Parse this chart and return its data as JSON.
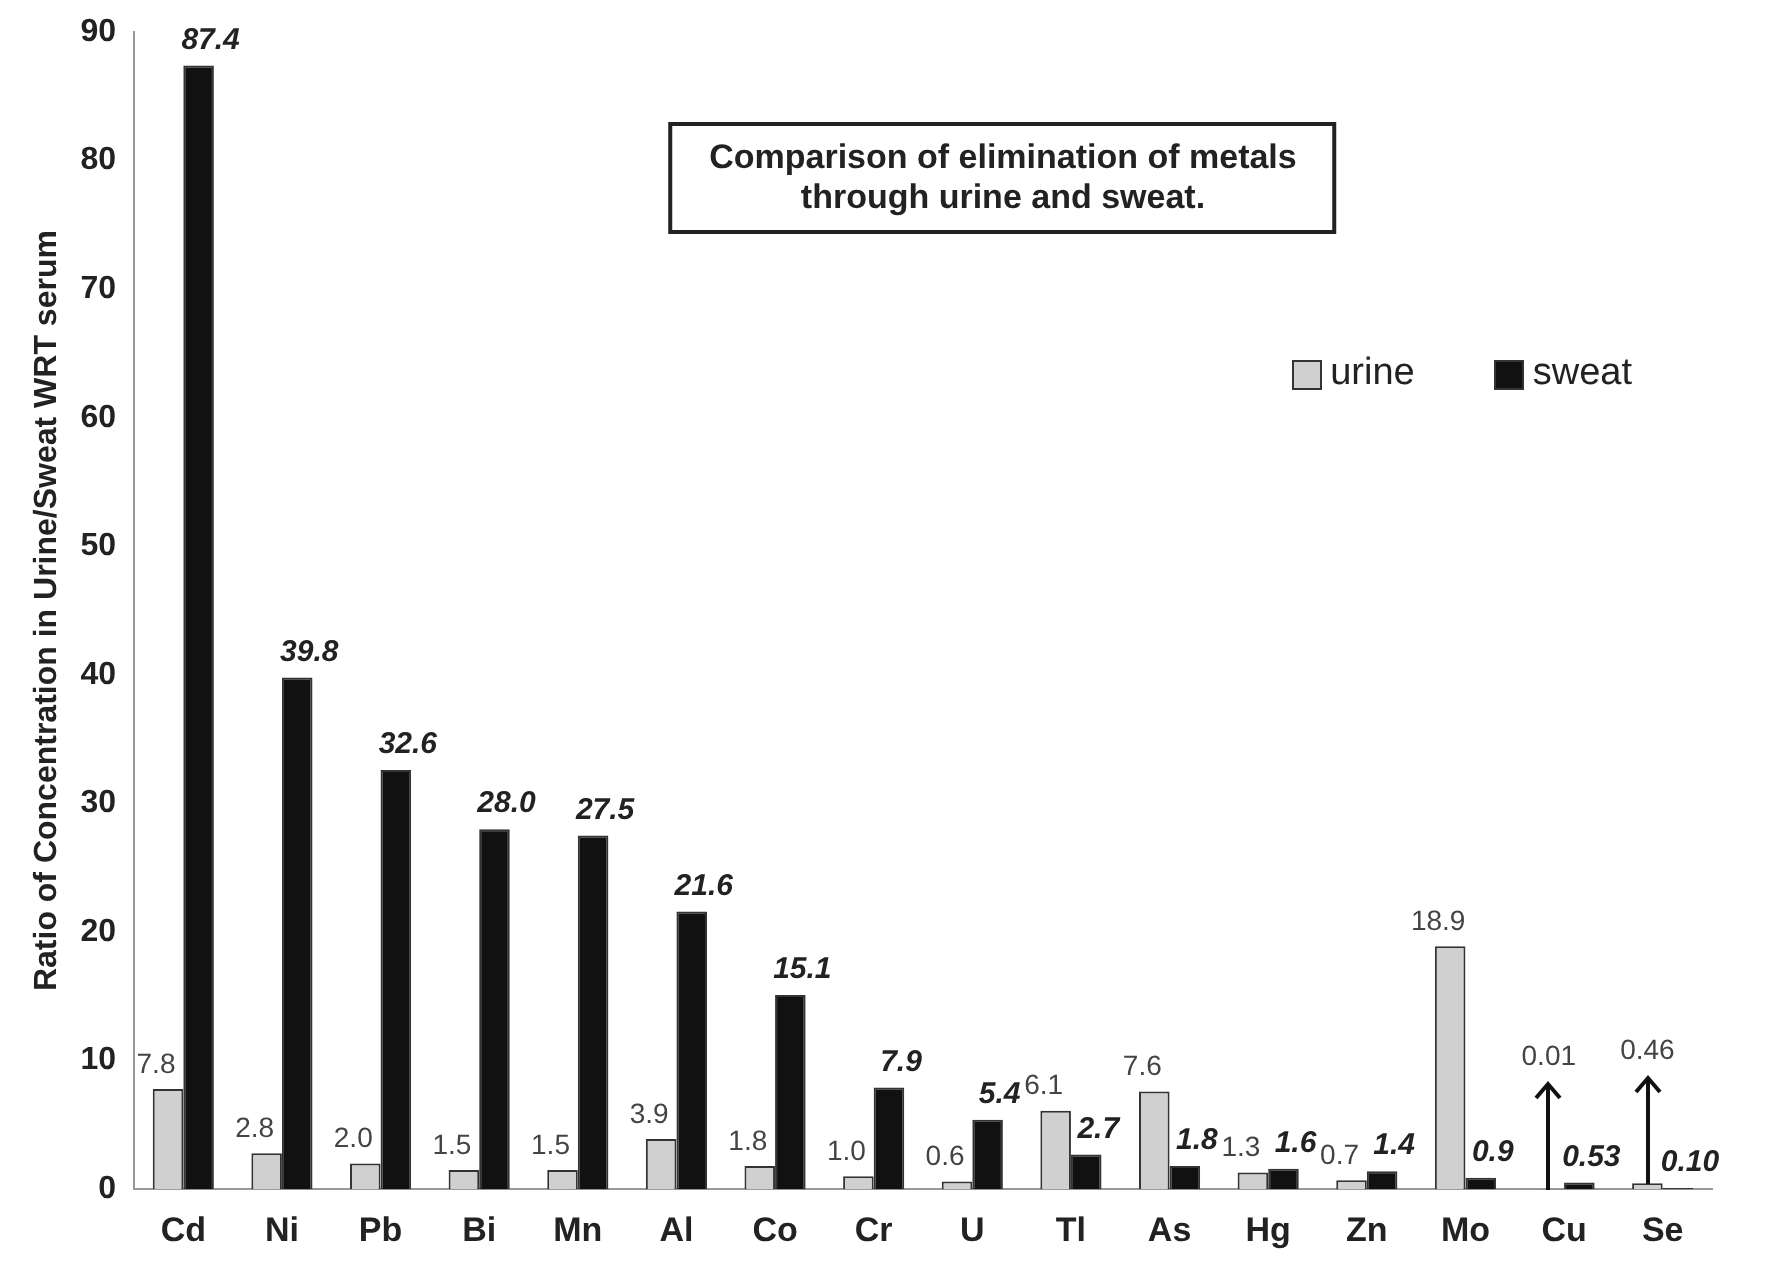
{
  "chart_data": {
    "type": "bar",
    "title": "Comparison of elimination of metals\nthrough urine and sweat.",
    "ylabel": "Ratio of Concentration in Urine/Sweat WRT serum",
    "categories": [
      "Cd",
      "Ni",
      "Pb",
      "Bi",
      "Mn",
      "Al",
      "Co",
      "Cr",
      "U",
      "Tl",
      "As",
      "Hg",
      "Zn",
      "Mo",
      "Cu",
      "Se"
    ],
    "series": [
      {
        "name": "urine",
        "color": "#d0d0d0",
        "values": [
          7.8,
          2.8,
          2.0,
          1.5,
          1.5,
          3.9,
          1.8,
          1.0,
          0.6,
          6.1,
          7.6,
          1.3,
          0.7,
          18.9,
          0.01,
          0.46
        ],
        "value_labels": [
          "7.8",
          "2.8",
          "2.0",
          "1.5",
          "1.5",
          "3.9",
          "1.8",
          "1.0",
          "0.6",
          "6.1",
          "7.6",
          "1.3",
          "0.7",
          "18.9",
          "0.01",
          "0.46"
        ]
      },
      {
        "name": "sweat",
        "color": "#111111",
        "values": [
          87.4,
          39.8,
          32.6,
          28.0,
          27.5,
          21.6,
          15.1,
          7.9,
          5.4,
          2.7,
          1.8,
          1.6,
          1.4,
          0.9,
          0.53,
          0.1
        ],
        "value_labels": [
          "87.4",
          "39.8",
          "32.6",
          "28.0",
          "27.5",
          "21.6",
          "15.1",
          "7.9",
          "5.4",
          "2.7",
          "1.8",
          "1.6",
          "1.4",
          "0.9",
          "0.53",
          "0.10"
        ]
      }
    ],
    "ylim": [
      0,
      90
    ],
    "yticks": [
      0,
      10,
      20,
      30,
      40,
      50,
      60,
      70,
      80,
      90
    ],
    "grid": false,
    "legend": "top right"
  }
}
